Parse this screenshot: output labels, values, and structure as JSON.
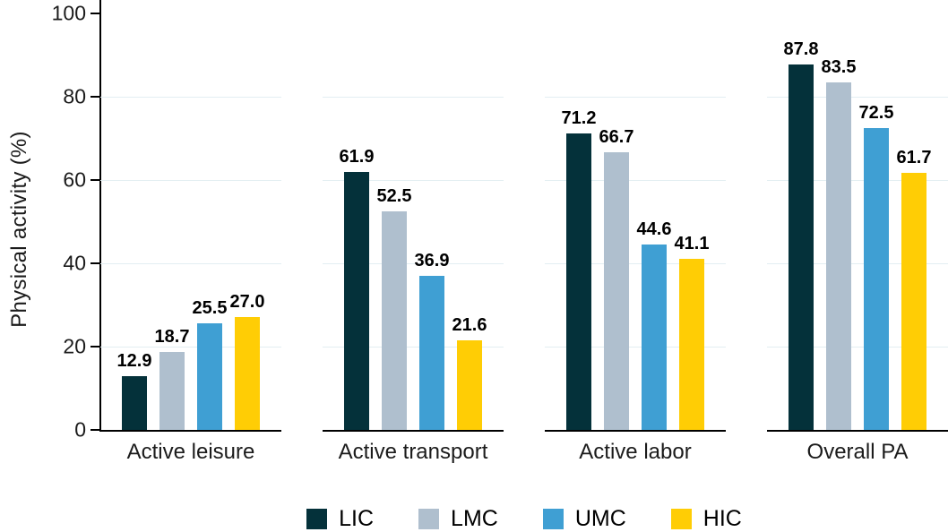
{
  "chart_data": {
    "type": "bar",
    "title": "",
    "xlabel": "",
    "ylabel": "Physical activity (%)",
    "ylim": [
      0,
      100
    ],
    "yticks": [
      0,
      20,
      40,
      60,
      80,
      100
    ],
    "gridlines": [
      20,
      40,
      60,
      80
    ],
    "grid": true,
    "legend_position": "bottom",
    "categories": [
      "Active leisure",
      "Active transport",
      "Active labor",
      "Overall PA"
    ],
    "series": [
      {
        "name": "LIC",
        "color": "#04313a",
        "values": [
          12.9,
          61.9,
          71.2,
          87.8
        ]
      },
      {
        "name": "LMC",
        "color": "#afbfce",
        "values": [
          18.7,
          52.5,
          66.7,
          83.5
        ]
      },
      {
        "name": "UMC",
        "color": "#3f9fd3",
        "values": [
          25.5,
          36.9,
          44.6,
          72.5
        ]
      },
      {
        "name": "HIC",
        "color": "#ffcd05",
        "values": [
          27.0,
          21.6,
          41.1,
          61.7
        ]
      }
    ],
    "value_label_decimals": 1,
    "colors": {
      "axis": "#000000",
      "gridline": "#e3eef2",
      "text": "#1b1b1b"
    }
  }
}
